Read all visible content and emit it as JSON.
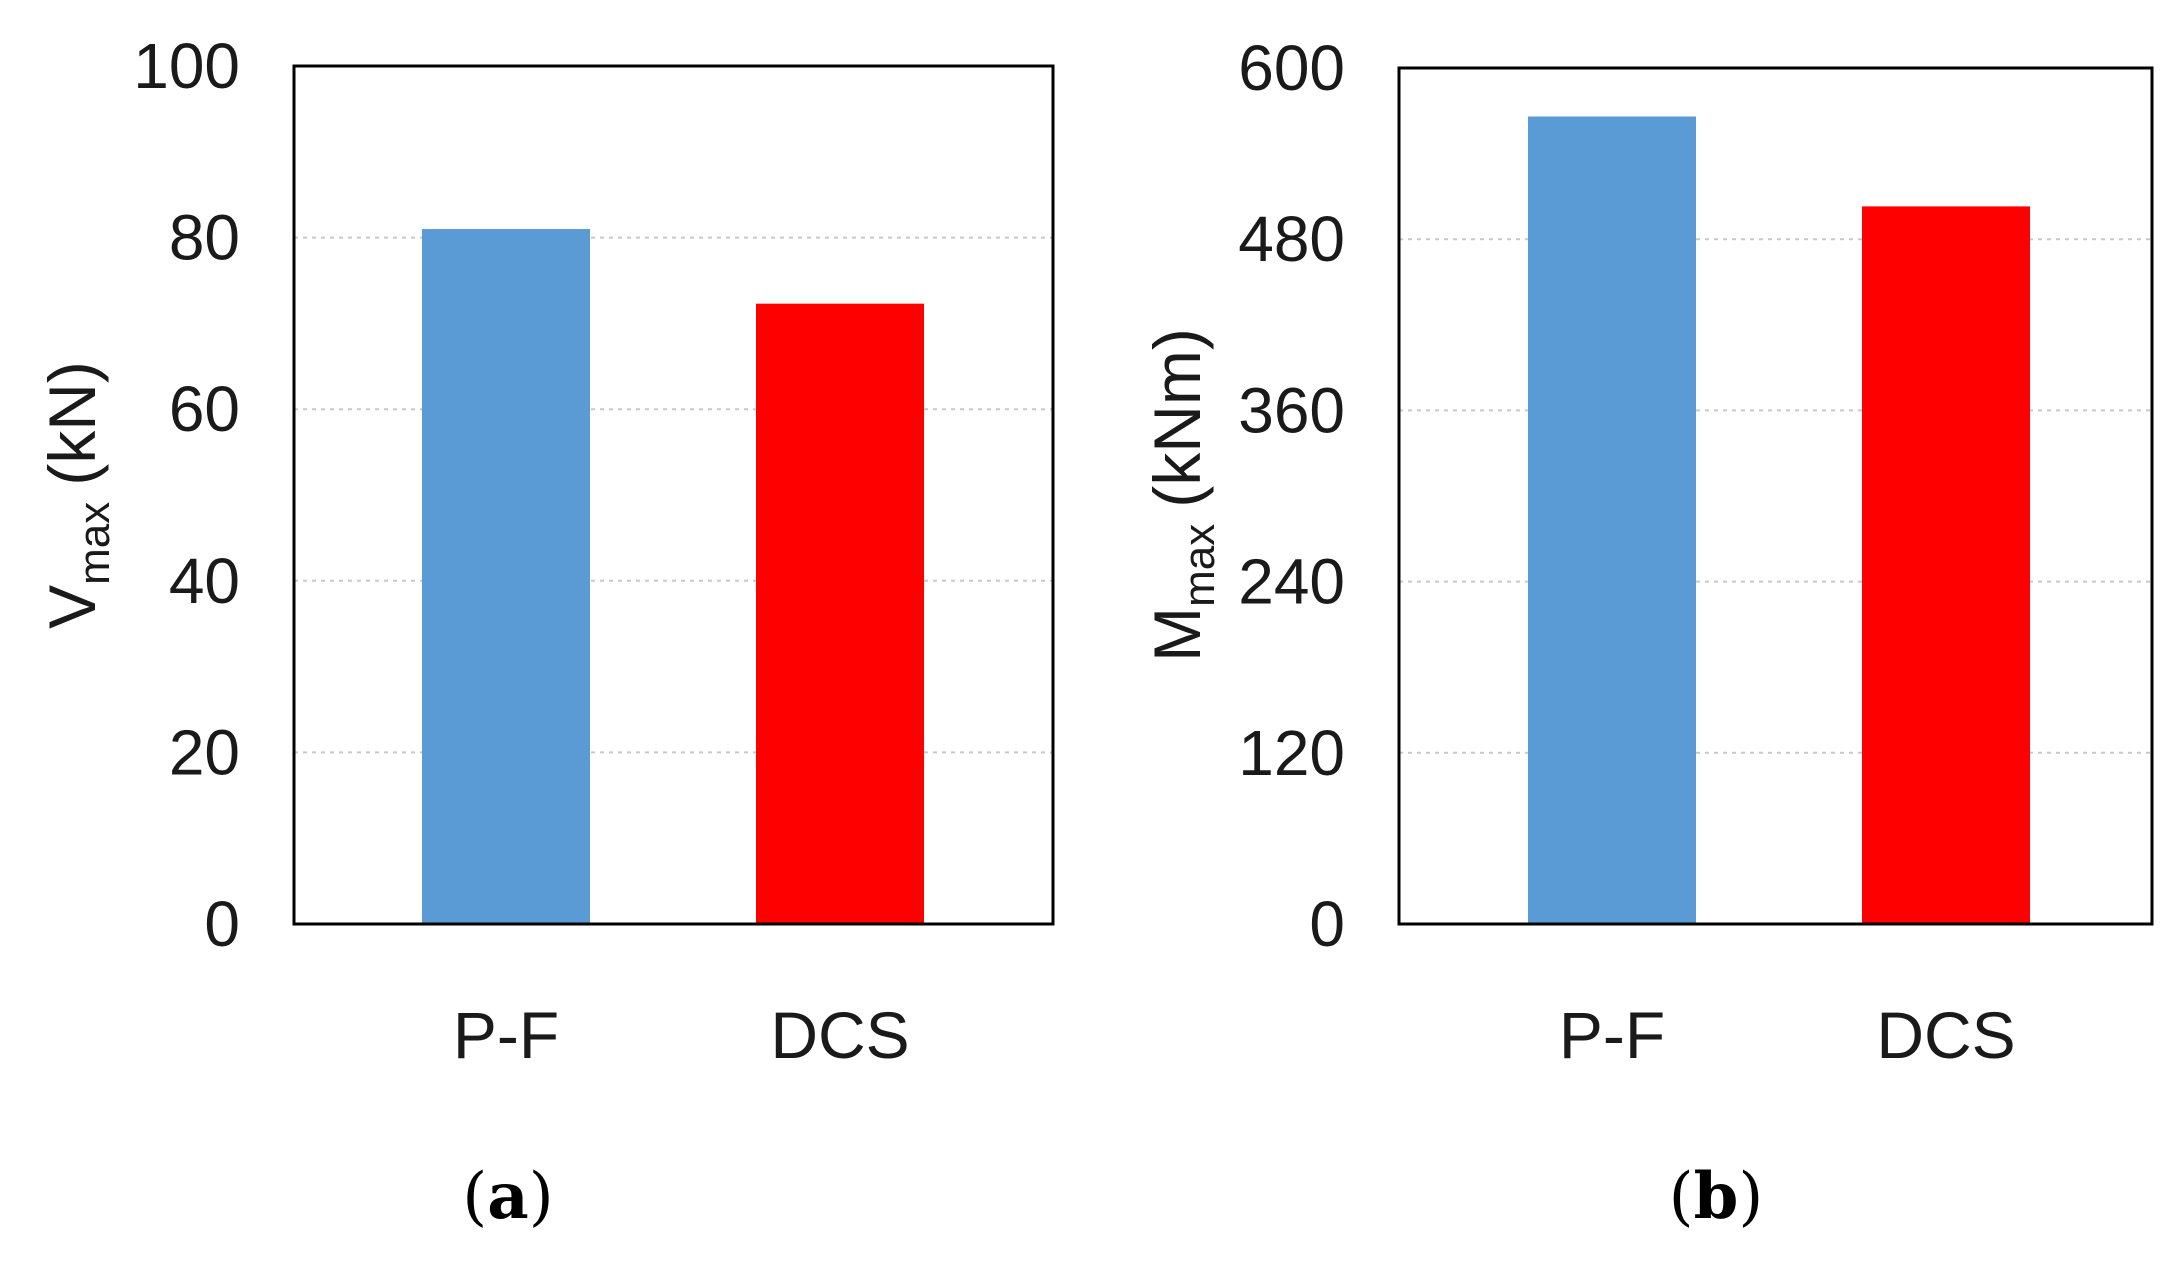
{
  "chart_data": [
    {
      "type": "bar",
      "panel_label": "a",
      "categories": [
        "P-F",
        "DCS"
      ],
      "values": [
        81,
        72.3
      ],
      "bar_colors": [
        "#5b9bd5",
        "#ff0000"
      ],
      "ylabel_main": "V",
      "ylabel_sub": "max",
      "ylabel_unit": "(kN)",
      "ylim": [
        0,
        100
      ],
      "yticks": [
        "0",
        "20",
        "40",
        "60",
        "80",
        "100"
      ],
      "grid": true
    },
    {
      "type": "bar",
      "panel_label": "b",
      "categories": [
        "P-F",
        "DCS"
      ],
      "values": [
        566,
        503
      ],
      "bar_colors": [
        "#5b9bd5",
        "#ff0000"
      ],
      "ylabel_main": "M",
      "ylabel_sub": "max",
      "ylabel_unit": "(kNm)",
      "ylim": [
        0,
        600
      ],
      "yticks": [
        "0",
        "120",
        "240",
        "360",
        "480",
        "600"
      ],
      "grid": true
    }
  ]
}
